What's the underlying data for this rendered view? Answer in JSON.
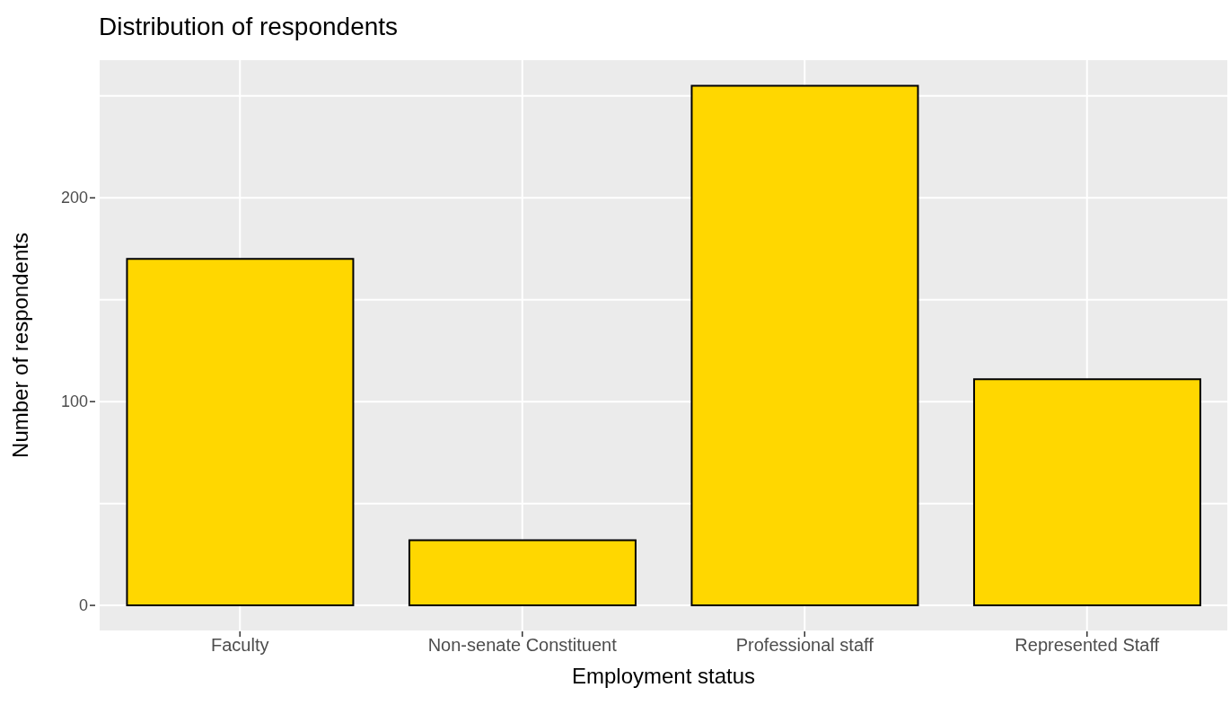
{
  "chart_data": {
    "type": "bar",
    "title": "Distribution of respondents",
    "xlabel": "Employment status",
    "ylabel": "Number of respondents",
    "categories": [
      "Faculty",
      "Non-senate Constituent",
      "Professional staff",
      "Represented Staff"
    ],
    "values": [
      170,
      32,
      255,
      111
    ],
    "color": "#ffd700",
    "ylim": [
      -12.75,
      268
    ],
    "yticks": [
      0,
      {
        "value": 50,
        "label": null
      },
      100,
      {
        "value": 150,
        "label": null
      },
      200,
      {
        "value": 250,
        "label": null
      }
    ],
    "grid": true
  }
}
